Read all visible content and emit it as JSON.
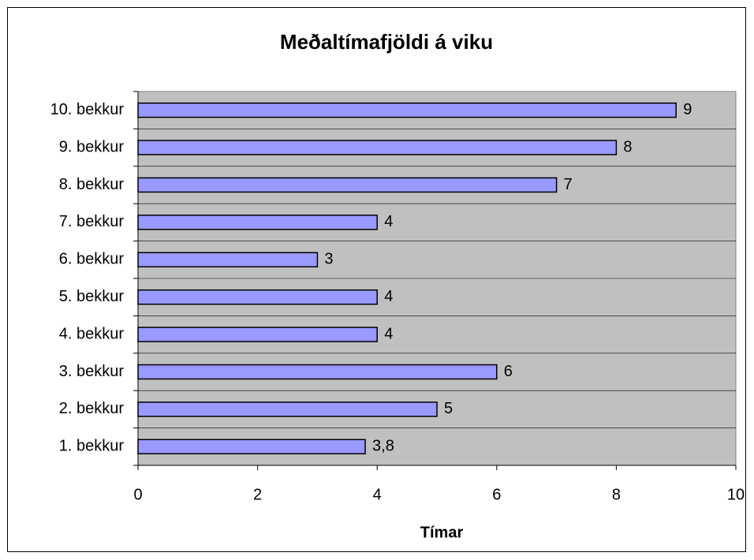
{
  "chart_data": {
    "type": "bar",
    "orientation": "horizontal",
    "title": "Meðaltímafjöldi á viku",
    "x_label": "Tímar",
    "categories": [
      "1. bekkur",
      "2. bekkur",
      "3. bekkur",
      "4. bekkur",
      "5. bekkur",
      "6. bekkur",
      "7. bekkur",
      "8. bekkur",
      "9. bekkur",
      "10. bekkur"
    ],
    "values": [
      3.8,
      5,
      6,
      4,
      4,
      3,
      4,
      7,
      8,
      9
    ],
    "value_labels": [
      "3,8",
      "5",
      "6",
      "4",
      "4",
      "3",
      "4",
      "7",
      "8",
      "9"
    ],
    "color": "#9999ff",
    "xlim": [
      0,
      10
    ],
    "xticks": [
      0,
      2,
      4,
      6,
      8,
      10
    ],
    "grid": true
  }
}
